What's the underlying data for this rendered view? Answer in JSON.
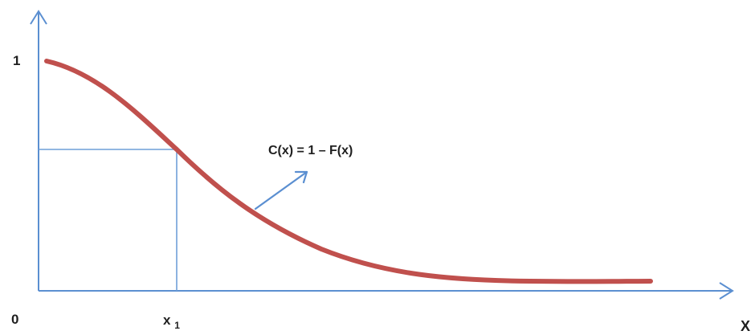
{
  "diagram": {
    "y_tick_one": "1",
    "origin_label": "0",
    "x1_label_base": "x",
    "x1_label_sub": "1",
    "x_axis_label": "X",
    "curve_label": "C(x) = 1 – F(x)",
    "colors": {
      "axis": "#5b8fd1",
      "curve": "#c0504d",
      "text": "#1f1f1f"
    }
  }
}
